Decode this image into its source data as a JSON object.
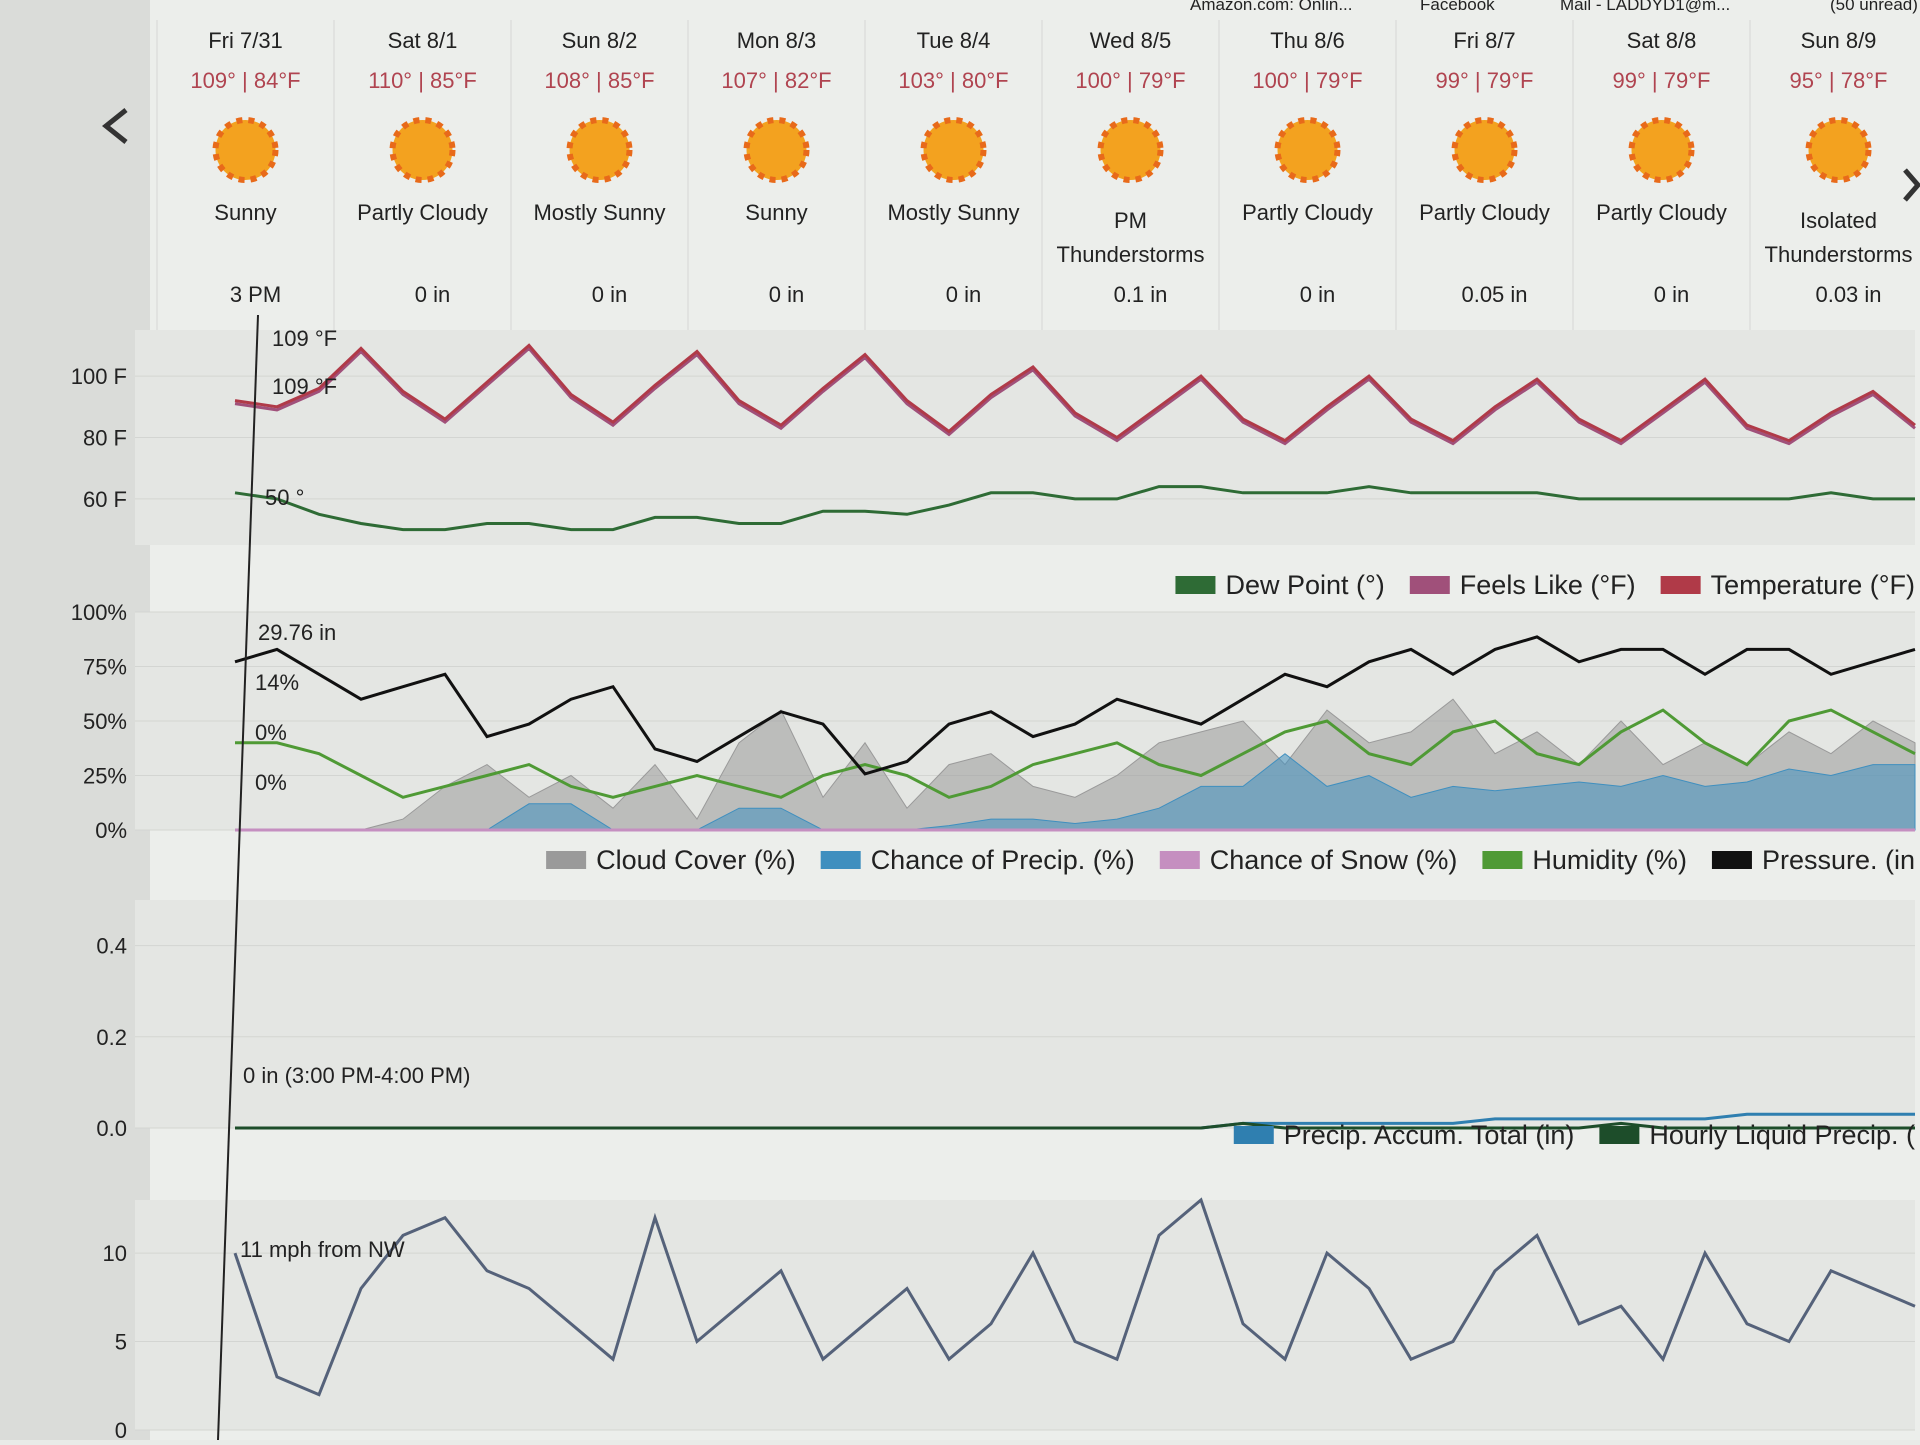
{
  "browser_bar": {
    "bookmarks": [
      "Amazon.com: Onlin...",
      "Facebook",
      "Mail - LADDYD1@m...",
      "(50 unread)"
    ]
  },
  "forecast": {
    "days": [
      {
        "date": "Fri 7/31",
        "temps": "109° | 84°F",
        "condition": "Sunny",
        "precip": "3 PM"
      },
      {
        "date": "Sat 8/1",
        "temps": "110° | 85°F",
        "condition": "Partly Cloudy",
        "precip": "0 in"
      },
      {
        "date": "Sun 8/2",
        "temps": "108° | 85°F",
        "condition": "Mostly Sunny",
        "precip": "0 in"
      },
      {
        "date": "Mon 8/3",
        "temps": "107° | 82°F",
        "condition": "Sunny",
        "precip": "0 in"
      },
      {
        "date": "Tue 8/4",
        "temps": "103° | 80°F",
        "condition": "Mostly Sunny",
        "precip": "0 in"
      },
      {
        "date": "Wed 8/5",
        "temps": "100° | 79°F",
        "condition": "PM Thunderstorms",
        "precip": "0.1 in"
      },
      {
        "date": "Thu 8/6",
        "temps": "100° | 79°F",
        "condition": "Partly Cloudy",
        "precip": "0 in"
      },
      {
        "date": "Fri 8/7",
        "temps": "99° | 79°F",
        "condition": "Partly Cloudy",
        "precip": "0.05 in"
      },
      {
        "date": "Sat 8/8",
        "temps": "99° | 79°F",
        "condition": "Partly Cloudy",
        "precip": "0 in"
      },
      {
        "date": "Sun 8/9",
        "temps": "95° | 78°F",
        "condition": "Isolated Thunderstorms",
        "precip": "0.03 in"
      }
    ]
  },
  "charts": [
    {
      "type": "line",
      "ylim": [
        45,
        115
      ],
      "yticks": [
        {
          "value": 100,
          "label": "100 F"
        },
        {
          "value": 80,
          "label": "80 F"
        },
        {
          "value": 60,
          "label": "60 F"
        }
      ],
      "annotations": [
        "109 °F",
        "109 °F",
        "50 °"
      ],
      "series": [
        {
          "name": "Dew Point (°)",
          "color": "#2e6b35",
          "values": [
            62,
            60,
            55,
            52,
            50,
            50,
            52,
            52,
            50,
            50,
            54,
            54,
            52,
            52,
            56,
            56,
            55,
            58,
            62,
            62,
            60,
            60,
            64,
            64,
            62,
            62,
            62,
            64,
            62,
            62,
            62,
            62,
            60,
            60,
            60,
            60,
            60,
            60,
            62,
            60,
            60
          ]
        },
        {
          "name": "Feels Like (°F)",
          "color": "#a0507a",
          "values": [
            91,
            89,
            95,
            108,
            94,
            85,
            97,
            109,
            93,
            84,
            96,
            107,
            91,
            83,
            95,
            106,
            91,
            81,
            93,
            102,
            87,
            79,
            89,
            99,
            85,
            78,
            89,
            99,
            85,
            78,
            89,
            98,
            85,
            78,
            88,
            98,
            83,
            78,
            87,
            94,
            83
          ]
        },
        {
          "name": "Temperature (°F)",
          "color": "#b03a48",
          "values": [
            92,
            90,
            96,
            109,
            95,
            86,
            98,
            110,
            94,
            85,
            97,
            108,
            92,
            84,
            96,
            107,
            92,
            82,
            94,
            103,
            88,
            80,
            90,
            100,
            86,
            79,
            90,
            100,
            86,
            79,
            90,
            99,
            86,
            79,
            89,
            99,
            84,
            79,
            88,
            95,
            84
          ]
        }
      ]
    },
    {
      "type": "line",
      "ylim": [
        0,
        100
      ],
      "yticks": [
        {
          "value": 100,
          "label": "100%"
        },
        {
          "value": 75,
          "label": "75%"
        },
        {
          "value": 50,
          "label": "50%"
        },
        {
          "value": 25,
          "label": "25%"
        },
        {
          "value": 0,
          "label": "0%"
        }
      ],
      "y2lim": [
        29.55,
        29.9
      ],
      "annotations": [
        "29.76 in",
        "14%",
        "0%",
        "0%"
      ],
      "series": [
        {
          "name": "Cloud Cover (%)",
          "color": "#9a9a9a",
          "area": true,
          "values": [
            0,
            0,
            0,
            0,
            5,
            20,
            30,
            15,
            25,
            10,
            30,
            5,
            40,
            55,
            15,
            40,
            10,
            30,
            35,
            20,
            15,
            25,
            40,
            45,
            50,
            30,
            55,
            40,
            45,
            60,
            35,
            45,
            30,
            50,
            30,
            40,
            30,
            45,
            35,
            50,
            40
          ]
        },
        {
          "name": "Chance of Precip. (%)",
          "color": "#3f8fbf",
          "area": true,
          "values": [
            0,
            0,
            0,
            0,
            0,
            0,
            0,
            12,
            12,
            0,
            0,
            0,
            10,
            10,
            0,
            0,
            0,
            2,
            5,
            5,
            3,
            5,
            10,
            20,
            20,
            35,
            20,
            25,
            15,
            20,
            18,
            20,
            22,
            20,
            25,
            20,
            22,
            28,
            25,
            30,
            30
          ]
        },
        {
          "name": "Chance of Snow (%)",
          "color": "#c58fc0",
          "values": [
            0,
            0,
            0,
            0,
            0,
            0,
            0,
            0,
            0,
            0,
            0,
            0,
            0,
            0,
            0,
            0,
            0,
            0,
            0,
            0,
            0,
            0,
            0,
            0,
            0,
            0,
            0,
            0,
            0,
            0,
            0,
            0,
            0,
            0,
            0,
            0,
            0,
            0,
            0,
            0,
            0
          ]
        },
        {
          "name": "Humidity (%)",
          "color": "#4f9a35",
          "values": [
            40,
            40,
            35,
            25,
            15,
            20,
            25,
            30,
            20,
            15,
            20,
            25,
            20,
            15,
            25,
            30,
            25,
            15,
            20,
            30,
            35,
            40,
            30,
            25,
            35,
            45,
            50,
            35,
            30,
            45,
            50,
            35,
            30,
            45,
            55,
            40,
            30,
            50,
            55,
            45,
            35
          ]
        },
        {
          "name": "Pressure. (in",
          "color": "#111111",
          "axis": "y2",
          "values": [
            29.82,
            29.84,
            29.8,
            29.76,
            29.78,
            29.8,
            29.7,
            29.72,
            29.76,
            29.78,
            29.68,
            29.66,
            29.7,
            29.74,
            29.72,
            29.64,
            29.66,
            29.72,
            29.74,
            29.7,
            29.72,
            29.76,
            29.74,
            29.72,
            29.76,
            29.8,
            29.78,
            29.82,
            29.84,
            29.8,
            29.84,
            29.86,
            29.82,
            29.84,
            29.84,
            29.8,
            29.84,
            29.84,
            29.8,
            29.82,
            29.84
          ]
        }
      ]
    },
    {
      "type": "line",
      "ylim": [
        0,
        0.5
      ],
      "yticks": [
        {
          "value": 0.4,
          "label": "0.4"
        },
        {
          "value": 0.2,
          "label": "0.2"
        },
        {
          "value": 0,
          "label": "0.0"
        }
      ],
      "annotations": [
        "0 in (3:00 PM-4:00 PM)"
      ],
      "series": [
        {
          "name": "Precip. Accum. Total (in)",
          "color": "#2f7fb0",
          "values": [
            0,
            0,
            0,
            0,
            0,
            0,
            0,
            0,
            0,
            0,
            0,
            0,
            0,
            0,
            0,
            0,
            0,
            0,
            0,
            0,
            0,
            0,
            0,
            0,
            0.01,
            0.01,
            0.01,
            0.01,
            0.01,
            0.01,
            0.02,
            0.02,
            0.02,
            0.02,
            0.02,
            0.02,
            0.03,
            0.03,
            0.03,
            0.03,
            0.03
          ]
        },
        {
          "name": "Hourly Liquid Precip. (",
          "color": "#1d4d2a",
          "values": [
            0,
            0,
            0,
            0,
            0,
            0,
            0,
            0,
            0,
            0,
            0,
            0,
            0,
            0,
            0,
            0,
            0,
            0,
            0,
            0,
            0,
            0,
            0,
            0,
            0.01,
            0,
            0,
            0,
            0,
            0,
            0,
            0,
            0,
            0.01,
            0,
            0,
            0,
            0,
            0,
            0,
            0
          ]
        }
      ]
    },
    {
      "type": "line",
      "ylim": [
        0,
        13
      ],
      "yticks": [
        10,
        5,
        0
      ],
      "annotations": [
        "11 mph from NW"
      ],
      "series": [
        {
          "color": "#55627a",
          "values": [
            10,
            3,
            2,
            8,
            11,
            12,
            9,
            8,
            6,
            4,
            12,
            5,
            7,
            9,
            4,
            6,
            8,
            4,
            6,
            10,
            5,
            4,
            11,
            13,
            6,
            4,
            10,
            8,
            4,
            5,
            9,
            11,
            6,
            7,
            4,
            10,
            6,
            5,
            9,
            8,
            7
          ]
        }
      ]
    }
  ]
}
